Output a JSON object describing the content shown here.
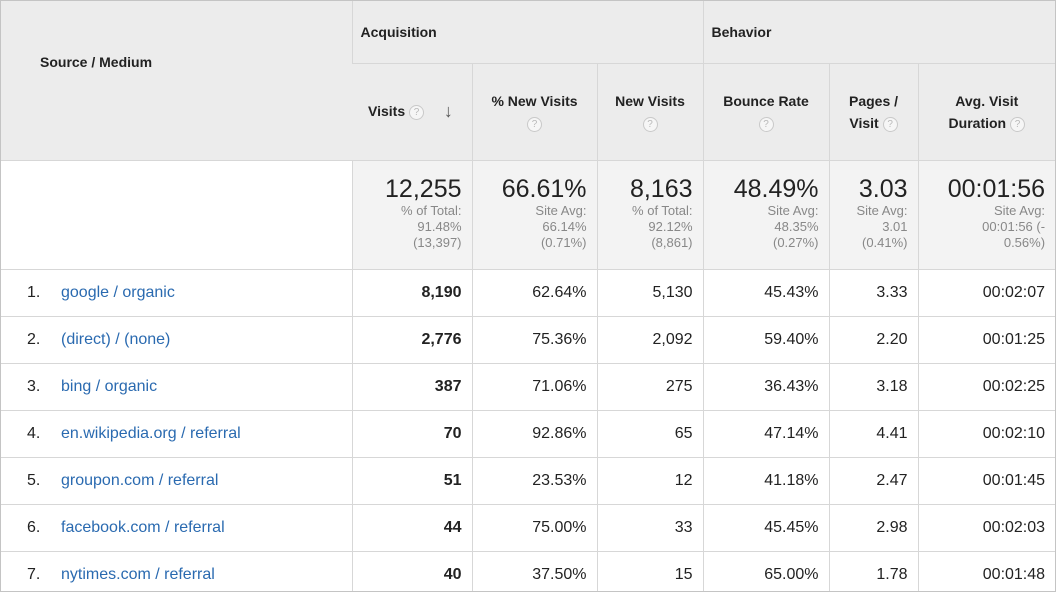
{
  "headers": {
    "source_medium": "Source / Medium",
    "acquisition": "Acquisition",
    "behavior": "Behavior",
    "visits": "Visits",
    "pct_new_visits": "% New Visits",
    "new_visits": "New Visits",
    "bounce_rate": "Bounce Rate",
    "pages_per_visit_1": "Pages /",
    "pages_per_visit_2": "Visit",
    "avg_visit_duration_1": "Avg. Visit",
    "avg_visit_duration_2": "Duration",
    "help_glyph": "?",
    "sort_glyph": "↓"
  },
  "totals": {
    "visits": {
      "value": "12,255",
      "sub": "% of Total:\n91.48%\n(13,397)"
    },
    "pct_new_visits": {
      "value": "66.61%",
      "sub": "Site Avg:\n66.14%\n(0.71%)"
    },
    "new_visits": {
      "value": "8,163",
      "sub": "% of Total:\n92.12%\n(8,861)"
    },
    "bounce_rate": {
      "value": "48.49%",
      "sub": "Site Avg:\n48.35%\n(0.27%)"
    },
    "pages_per_visit": {
      "value": "3.03",
      "sub": "Site Avg:\n3.01\n(0.41%)"
    },
    "avg_visit_duration": {
      "value": "00:01:56",
      "sub": "Site Avg:\n00:01:56 (-\n0.56%)"
    }
  },
  "rows": [
    {
      "rank": "1.",
      "source": "google / organic",
      "visits": "8,190",
      "pct_new": "62.64%",
      "new_visits": "5,130",
      "bounce": "45.43%",
      "pages": "3.33",
      "duration": "00:02:07"
    },
    {
      "rank": "2.",
      "source": "(direct) / (none)",
      "visits": "2,776",
      "pct_new": "75.36%",
      "new_visits": "2,092",
      "bounce": "59.40%",
      "pages": "2.20",
      "duration": "00:01:25"
    },
    {
      "rank": "3.",
      "source": "bing / organic",
      "visits": "387",
      "pct_new": "71.06%",
      "new_visits": "275",
      "bounce": "36.43%",
      "pages": "3.18",
      "duration": "00:02:25"
    },
    {
      "rank": "4.",
      "source": "en.wikipedia.org / referral",
      "visits": "70",
      "pct_new": "92.86%",
      "new_visits": "65",
      "bounce": "47.14%",
      "pages": "4.41",
      "duration": "00:02:10"
    },
    {
      "rank": "5.",
      "source": "groupon.com / referral",
      "visits": "51",
      "pct_new": "23.53%",
      "new_visits": "12",
      "bounce": "41.18%",
      "pages": "2.47",
      "duration": "00:01:45"
    },
    {
      "rank": "6.",
      "source": "facebook.com / referral",
      "visits": "44",
      "pct_new": "75.00%",
      "new_visits": "33",
      "bounce": "45.45%",
      "pages": "2.98",
      "duration": "00:02:03"
    },
    {
      "rank": "7.",
      "source": "nytimes.com / referral",
      "visits": "40",
      "pct_new": "37.50%",
      "new_visits": "15",
      "bounce": "65.00%",
      "pages": "1.78",
      "duration": "00:01:48"
    }
  ],
  "colors": {
    "link": "#2a6ab0",
    "header_bg": "#ececec",
    "totals_bg": "#f3f3f3"
  }
}
